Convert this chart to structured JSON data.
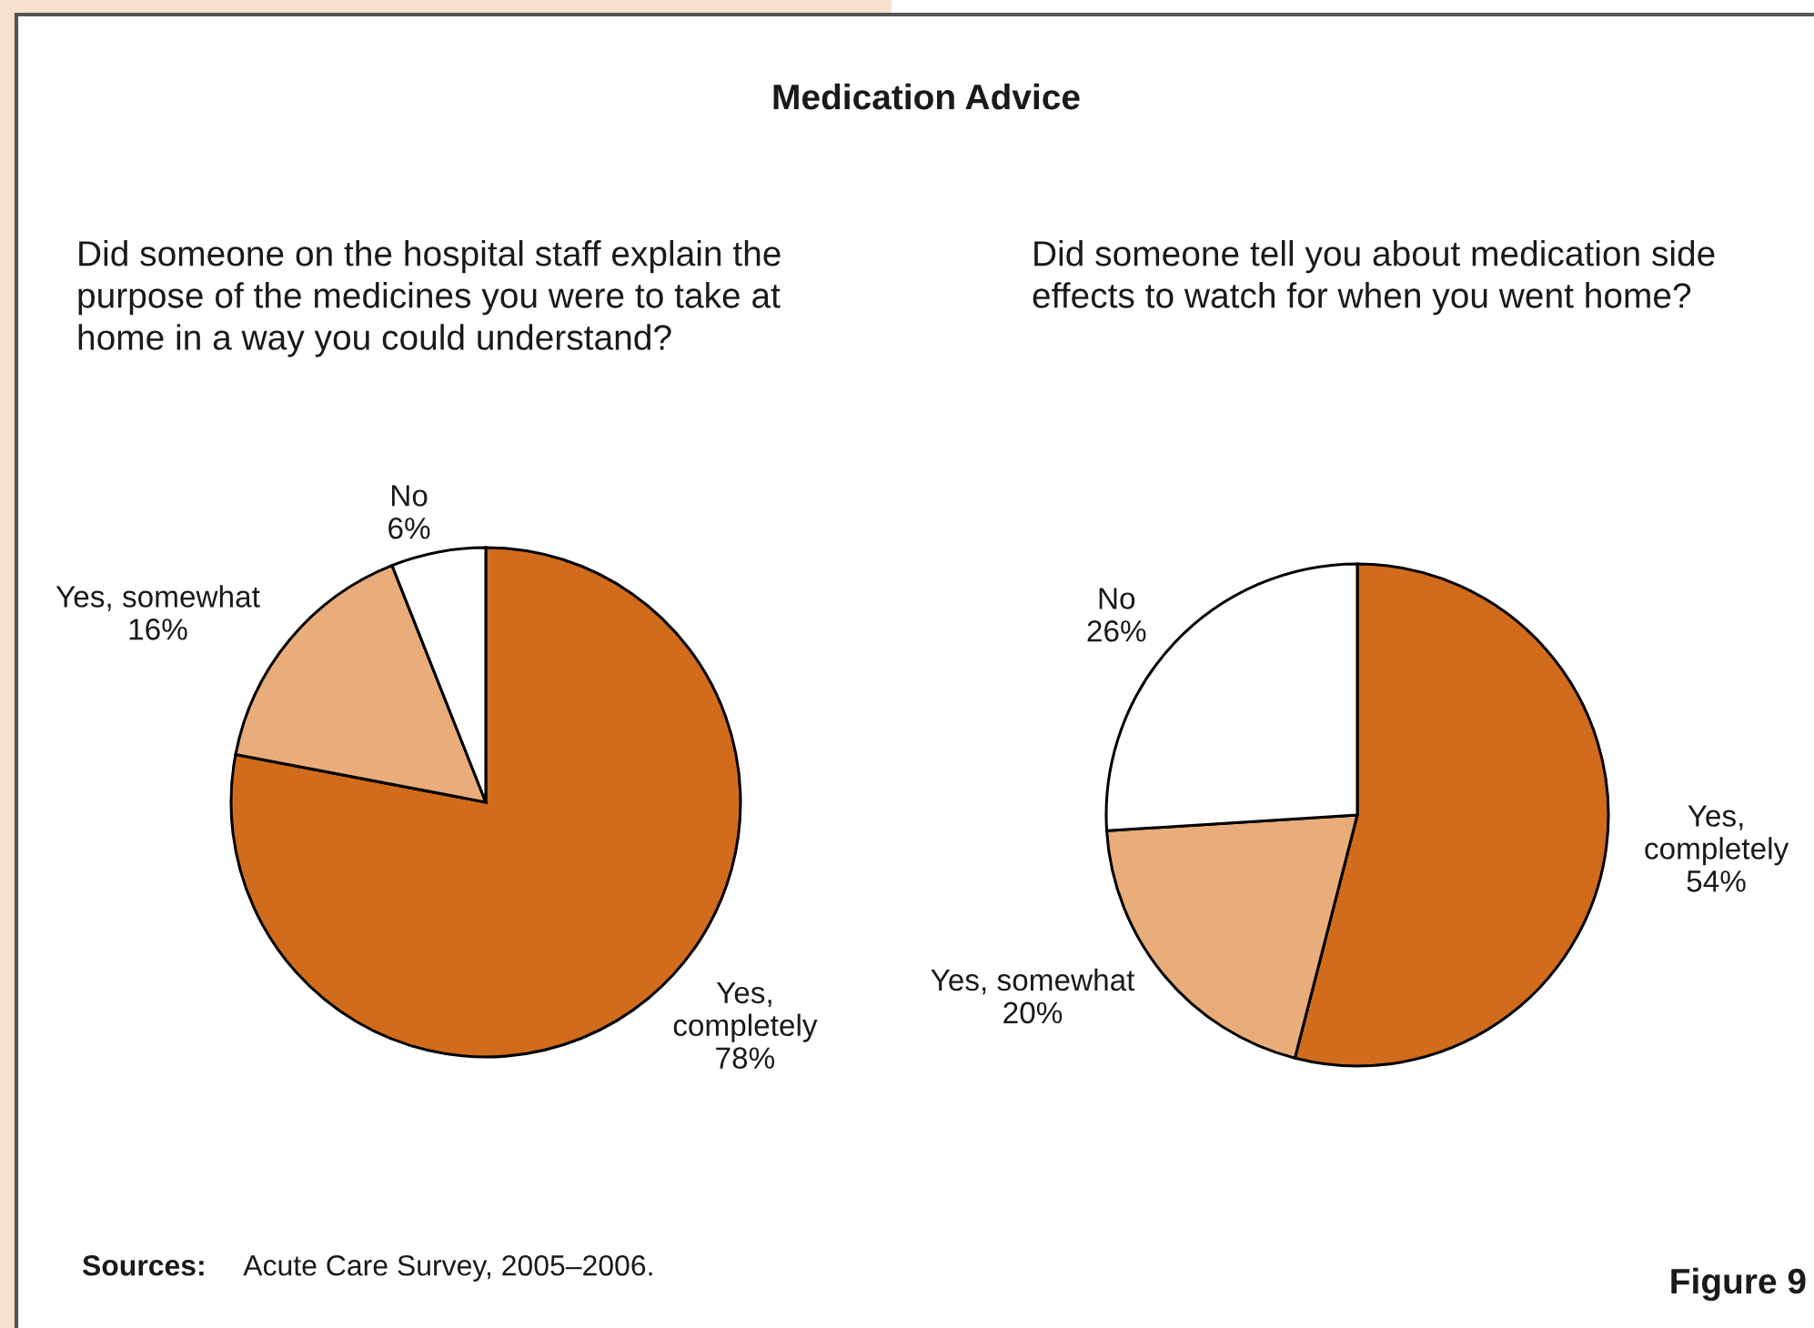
{
  "chart_data": [
    {
      "type": "pie",
      "title": "Did someone on the hospital staff explain the purpose of the medicines you were to take at home in a way you could understand?",
      "categories": [
        "Yes,\ncompletely",
        "Yes, somewhat",
        "No"
      ],
      "values": [
        78,
        16,
        6
      ],
      "value_labels": [
        "78%",
        "16%",
        "6%"
      ],
      "colors": [
        "#d06c1b",
        "#e8ad7b",
        "#ffffff"
      ],
      "annotations": [
        "Medication Advice",
        "Sources:",
        "Acute Care Survey, 2005–2006.",
        "Figure 9"
      ]
    },
    {
      "type": "pie",
      "title": "Did someone tell you about medication side effects to watch for when you went home?",
      "categories": [
        "Yes,\ncompletely",
        "Yes, somewhat",
        "No"
      ],
      "values": [
        54,
        20,
        26
      ],
      "value_labels": [
        "54%",
        "20%",
        "26%"
      ],
      "colors": [
        "#d06c1b",
        "#e8ad7b",
        "#ffffff"
      ]
    }
  ]
}
